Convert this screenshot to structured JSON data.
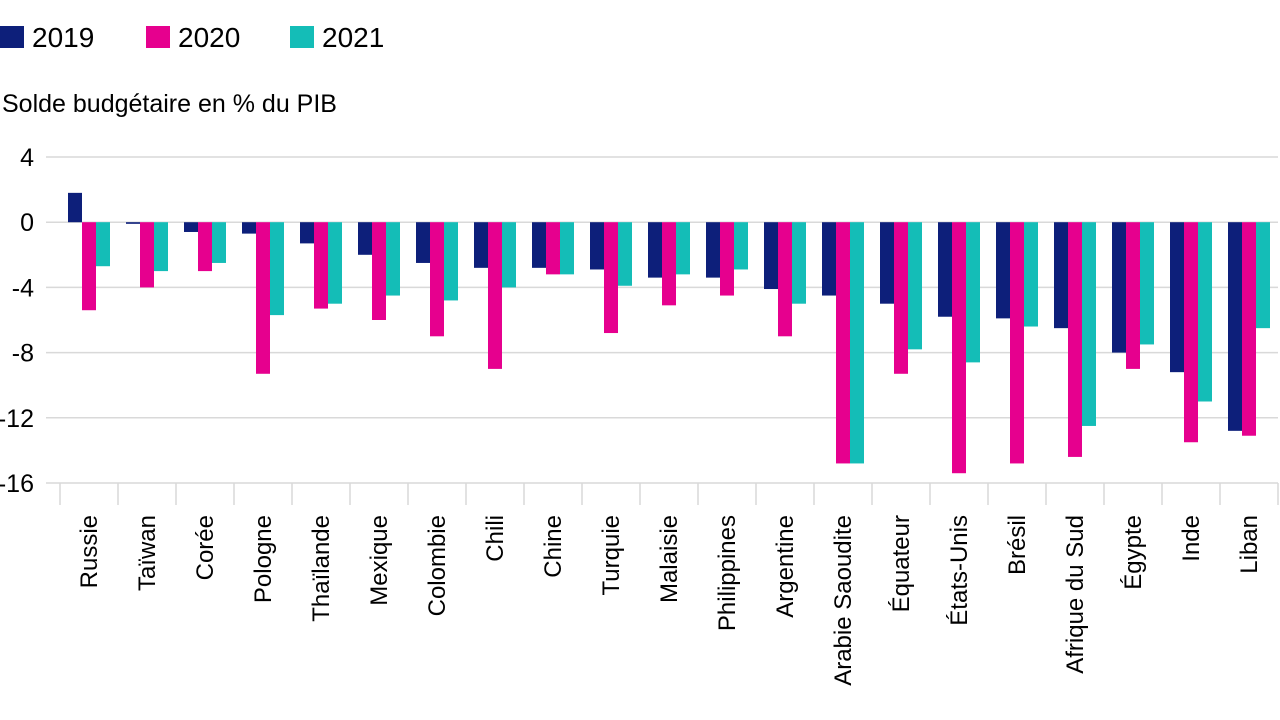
{
  "chart_data": {
    "type": "bar",
    "title": "",
    "ylabel": "Solde budgétaire en % du PIB",
    "xlabel": "",
    "ylim": [
      -16,
      4
    ],
    "yticks": [
      4,
      0,
      -4,
      -8,
      -12,
      -16
    ],
    "ytick_labels": [
      "4",
      "0",
      "-4",
      "-8",
      "-12",
      "-16"
    ],
    "grid": true,
    "legend_position": "top-left",
    "categories": [
      "Russie",
      "Taïwan",
      "Corée",
      "Pologne",
      "Thaïlande",
      "Mexique",
      "Colombie",
      "Chili",
      "Chine",
      "Turquie",
      "Malaisie",
      "Philippines",
      "Argentine",
      "Arabie Saoudite",
      "Équateur",
      "États-Unis",
      "Brésil",
      "Afrique du Sud",
      "Égypte",
      "Inde",
      "Liban"
    ],
    "series": [
      {
        "name": "2019",
        "color": "#0d1f7a",
        "values": [
          1.8,
          -0.1,
          -0.6,
          -0.7,
          -1.3,
          -2.0,
          -2.5,
          -2.8,
          -2.8,
          -2.9,
          -3.4,
          -3.4,
          -4.1,
          -4.5,
          -5.0,
          -5.8,
          -5.9,
          -6.5,
          -8.0,
          -9.2,
          -12.8
        ]
      },
      {
        "name": "2020",
        "color": "#e6008e",
        "values": [
          -5.4,
          -4.0,
          -3.0,
          -9.3,
          -5.3,
          -6.0,
          -7.0,
          -9.0,
          -3.2,
          -6.8,
          -5.1,
          -4.5,
          -7.0,
          -14.8,
          -9.3,
          -15.4,
          -14.8,
          -14.4,
          -9.0,
          -13.5,
          -13.1
        ]
      },
      {
        "name": "2021",
        "color": "#14bdb7",
        "values": [
          -2.7,
          -3.0,
          -2.5,
          -5.7,
          -5.0,
          -4.5,
          -4.8,
          -4.0,
          -3.2,
          -3.9,
          -3.2,
          -2.9,
          -5.0,
          -14.8,
          -7.8,
          -8.6,
          -6.4,
          -12.5,
          -7.5,
          -11.0,
          -6.5
        ]
      }
    ]
  }
}
